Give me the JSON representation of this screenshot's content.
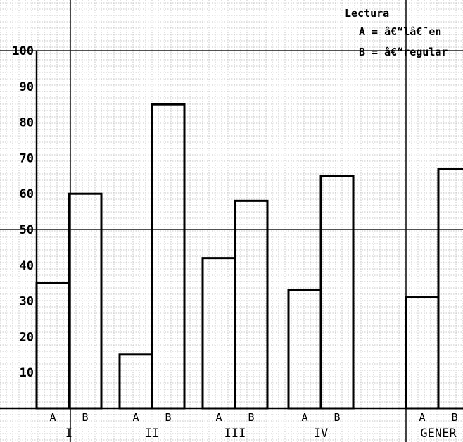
{
  "chart_data": {
    "type": "bar",
    "title": "",
    "xlabel": "",
    "ylabel": "",
    "ylim": [
      0,
      100
    ],
    "yticks": [
      10,
      20,
      30,
      40,
      50,
      60,
      70,
      80,
      90,
      100
    ],
    "grid": true,
    "groups": [
      "I",
      "II",
      "III",
      "IV",
      "GENER"
    ],
    "series": [
      {
        "name": "A",
        "values": [
          35,
          15,
          42,
          33,
          31
        ]
      },
      {
        "name": "B",
        "values": [
          60,
          85,
          58,
          65,
          67
        ]
      }
    ],
    "legend": {
      "title": "Lectura",
      "entries": [
        "A = â€“lâ€˜en",
        "B = â€“regular"
      ],
      "placement": "top-right"
    }
  }
}
